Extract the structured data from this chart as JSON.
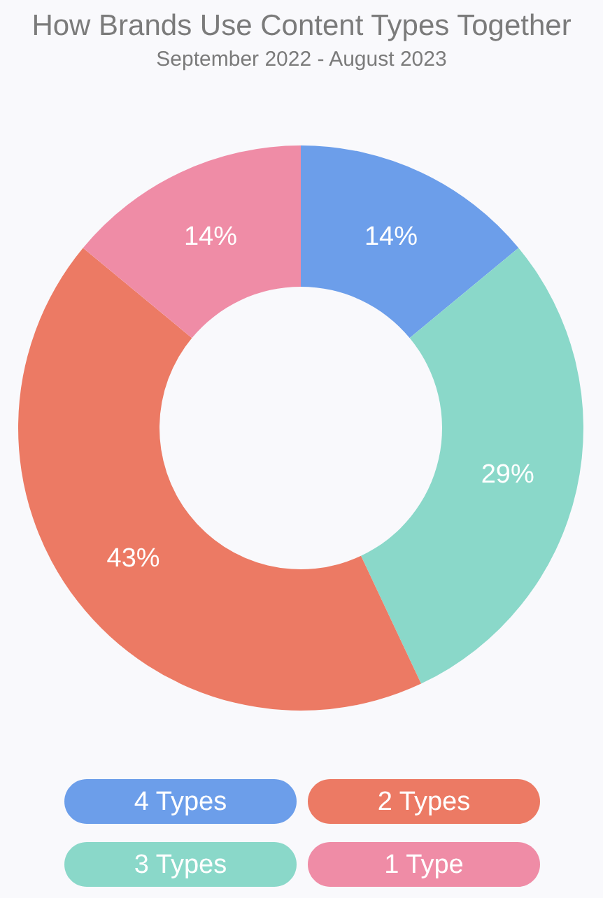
{
  "chart_data": {
    "type": "donut",
    "title": "How Brands Use Content Types Together",
    "subtitle": "September 2022 - August 2023",
    "categories": [
      "4 Types",
      "3 Types",
      "2 Types",
      "1 Type"
    ],
    "values": [
      14,
      29,
      43,
      14
    ],
    "colors": [
      "#6c9eea",
      "#8ad8c9",
      "#ec7a64",
      "#ef8ca6"
    ],
    "value_labels": [
      "14%",
      "29%",
      "43%",
      "14%"
    ],
    "legend": "bottom"
  }
}
